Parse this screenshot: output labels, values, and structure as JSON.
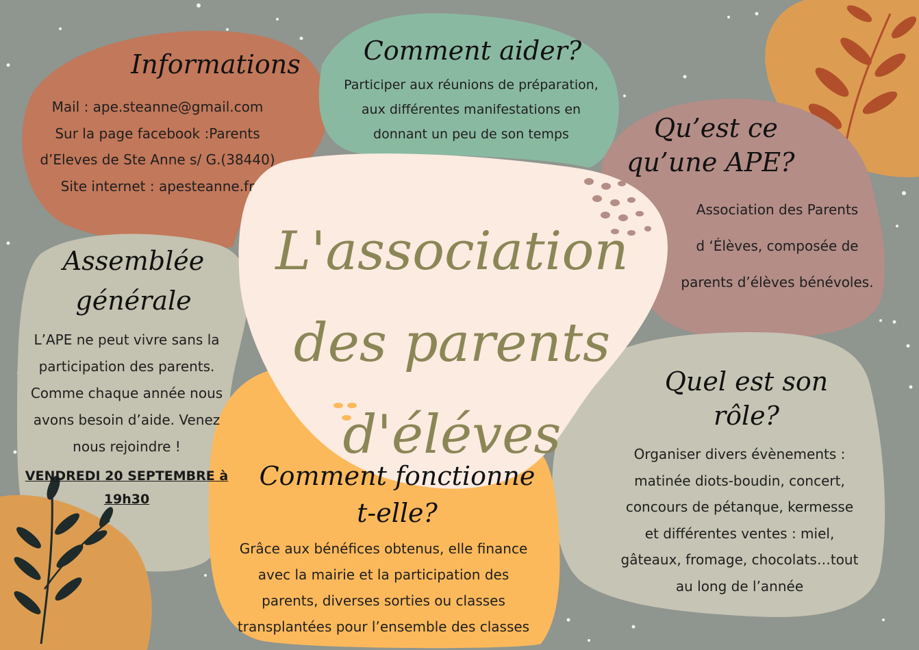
{
  "colors": {
    "background": "#8f958f",
    "informations_blob": "#c2785a",
    "aider_blob": "#8ab9a1",
    "ape_blob": "#b48d87",
    "center_blob": "#fbebe1",
    "assemblee_blob": "#c4c2b0",
    "fonctionne_blob": "#fcb95b",
    "role_blob": "#c6c4b4",
    "title_text": "#8b8656",
    "dark_leaves": "#1f2a2a",
    "rust_leaves": "#b14f2b"
  },
  "title": {
    "line1": "L'association",
    "line2": "des parents",
    "line3": "d'éléves"
  },
  "informations": {
    "heading": "Informations",
    "lines": [
      "Mail : ape.steanne@gmail.com",
      "Sur la page facebook :Parents",
      "d’Eleves de Ste Anne s/ G.(38440)",
      "Site internet : apesteanne.fr"
    ]
  },
  "comment_aider": {
    "heading": "Comment aider?",
    "lines": [
      "Participer aux réunions de préparation,",
      "aux différentes manifestations en",
      "donnant un peu de son temps"
    ]
  },
  "quest_ce": {
    "heading_line1": "Qu’est ce",
    "heading_line2": "qu’une APE?",
    "lines": [
      "Association des Parents",
      "d ‘Élèves, composée de",
      "parents d’élèves bénévoles."
    ]
  },
  "assemblee": {
    "heading_line1": "Assemblée",
    "heading_line2": "générale",
    "lines": [
      "L’APE ne peut vivre sans la",
      "participation des parents.",
      "Comme chaque année nous",
      "avons besoin d’aide. Venez",
      "nous rejoindre !"
    ],
    "date_line1": "VENDREDI 20 SEPTEMBRE à",
    "date_line2": "19h30"
  },
  "fonctionne": {
    "heading_line1": "Comment fonctionne",
    "heading_line2": "t-elle?",
    "lines": [
      "Grâce aux bénéfices obtenus, elle finance",
      "avec la mairie et la participation des",
      "parents, diverses sorties ou classes",
      "transplantées pour l’ensemble des classes"
    ]
  },
  "role": {
    "heading_line1": "Quel est son",
    "heading_line2": "rôle?",
    "lines": [
      "Organiser divers évènements :",
      "matinée diots-boudin, concert,",
      "concours de pétanque, kermesse",
      "et différentes ventes : miel,",
      "gâteaux, fromage, chocolats…tout",
      "au long de l’année"
    ]
  }
}
